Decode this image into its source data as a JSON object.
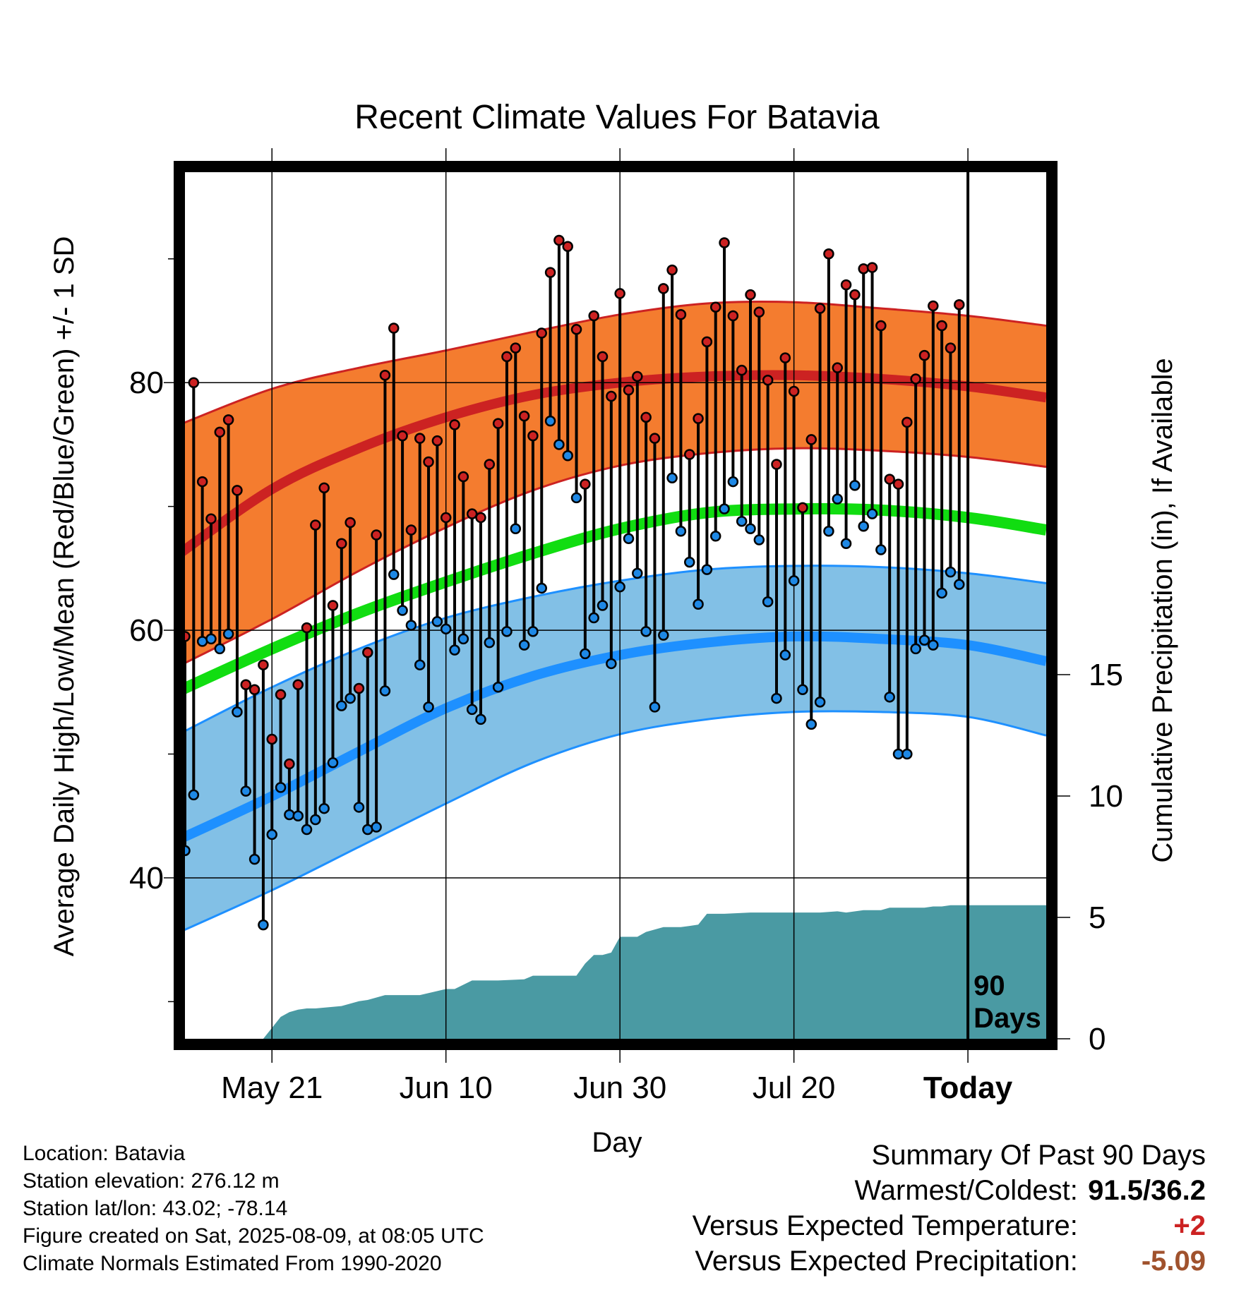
{
  "chart_data": {
    "type": "line",
    "title": "Recent Climate Values For Batavia",
    "xlabel": "Day",
    "ylabel": "Average Daily High/Low/Mean (Red/Blue/Green) +/- 1 SD",
    "y2label": "Cumulative Precipitation (in), If Available",
    "x_range_days_relative_to_today": [
      -90,
      9
    ],
    "ylim": [
      27,
      97
    ],
    "y_ticks": [
      40,
      60,
      80
    ],
    "y2lim": [
      0,
      35.7
    ],
    "y2_ticks": [
      0,
      5,
      10,
      15
    ],
    "x_tick_labels": [
      {
        "label": "May 21",
        "day": -80
      },
      {
        "label": "Jun 10",
        "day": -60
      },
      {
        "label": "Jun 30",
        "day": -40
      },
      {
        "label": "Jul 20",
        "day": -20
      },
      {
        "label": "Today",
        "day": 0
      }
    ],
    "grid": true,
    "today_marker_label": "90\nDays",
    "colors": {
      "high_band": "#f47c2f",
      "high_mean_line": "#cc2222",
      "low_band": "#82c0e6",
      "low_mean_line": "#1e90ff",
      "mean_line": "#11dd11",
      "precip_fill": "#4a9aa3",
      "high_marker": "#cc2222",
      "low_marker": "#1e88e5"
    },
    "normals": {
      "days": [
        -91,
        -80,
        -70,
        -60,
        -50,
        -40,
        -30,
        -20,
        -10,
        0,
        9
      ],
      "high_mean": [
        66,
        71.4,
        74.7,
        77.2,
        79.0,
        80.0,
        80.5,
        80.6,
        80.3,
        79.7,
        78.8
      ],
      "high_sd_upper": [
        76.5,
        79.5,
        81.2,
        82.6,
        84.1,
        85.5,
        86.4,
        86.5,
        86.0,
        85.4,
        84.6
      ],
      "high_sd_lower": [
        57,
        60.9,
        64.8,
        68.3,
        71.3,
        73.3,
        74.3,
        74.7,
        74.5,
        74.0,
        73.2
      ],
      "mean": [
        55,
        58.5,
        61.4,
        63.9,
        66.2,
        68.2,
        69.5,
        69.8,
        69.7,
        69.1,
        68.1
      ],
      "low_mean": [
        43,
        46.6,
        50.2,
        53.7,
        56.3,
        58.0,
        59.0,
        59.5,
        59.3,
        58.8,
        57.5
      ],
      "low_sd_upper": [
        51.5,
        55.4,
        58.5,
        61.0,
        62.7,
        64.0,
        64.9,
        65.2,
        65.1,
        64.6,
        63.8
      ],
      "low_sd_lower": [
        35.5,
        39.0,
        42.5,
        46.0,
        49.3,
        51.6,
        52.8,
        53.4,
        53.4,
        53.0,
        51.5
      ]
    },
    "daily_high": [
      59.5,
      80,
      72,
      69,
      76,
      77,
      71.3,
      55.6,
      55.2,
      57.2,
      51.2,
      54.8,
      49.2,
      55.6,
      60.2,
      68.5,
      71.5,
      62,
      67,
      68.7,
      55.3,
      58.2,
      67.7,
      80.6,
      84.4,
      75.7,
      68.1,
      75.5,
      73.6,
      75.3,
      69.1,
      76.6,
      72.4,
      69.4,
      69.1,
      73.4,
      76.7,
      82.1,
      82.8,
      77.3,
      75.7,
      84,
      88.9,
      91.5,
      91,
      84.3,
      71.8,
      85.4,
      82.1,
      78.9,
      87.2,
      79.4,
      80.5,
      77.2,
      75.5,
      87.6,
      89.1,
      85.5,
      74.2,
      77.1,
      83.3,
      86.1,
      91.3,
      85.4,
      81.0,
      87.1,
      85.7,
      80.2,
      73.4,
      82.0,
      79.3,
      69.9,
      75.4,
      86.0,
      90.4,
      81.2,
      87.9,
      87.1,
      89.2,
      89.3,
      84.6,
      72.2,
      71.8,
      76.8,
      80.3,
      82.2,
      86.2,
      84.6,
      82.8,
      86.3
    ],
    "daily_low": [
      42.2,
      46.7,
      59.1,
      59.3,
      58.5,
      59.7,
      53.4,
      47,
      41.5,
      36.2,
      43.5,
      47.3,
      45.1,
      45.0,
      43.9,
      44.7,
      45.6,
      49.3,
      53.9,
      54.5,
      45.7,
      43.9,
      44.1,
      55.1,
      64.5,
      61.6,
      60.4,
      57.2,
      53.8,
      60.7,
      60.1,
      58.4,
      59.3,
      53.6,
      52.8,
      59.0,
      55.4,
      59.9,
      68.2,
      58.8,
      59.9,
      63.4,
      76.9,
      75,
      74.1,
      70.7,
      58.1,
      61,
      62,
      57.3,
      63.5,
      67.4,
      64.6,
      59.9,
      53.8,
      59.6,
      72.3,
      68,
      65.5,
      62.1,
      64.9,
      67.6,
      69.8,
      72,
      68.8,
      68.2,
      67.3,
      62.3,
      54.5,
      58,
      64,
      55.2,
      52.4,
      54.2,
      68,
      70.6,
      67,
      71.7,
      68.4,
      69.4,
      66.5,
      54.6,
      50,
      50,
      58.5,
      59.2,
      58.8,
      63,
      64.7,
      63.7
    ],
    "cumulative_precip_in": {
      "days": [
        -90,
        -81,
        -79,
        -78,
        -77,
        -76,
        -75,
        -72,
        -70,
        -69,
        -67,
        -65,
        -64,
        -63,
        -60,
        -59,
        -57,
        -54,
        -51,
        -50,
        -47,
        -45,
        -44,
        -43,
        -42,
        -41,
        -40,
        -38,
        -37,
        -35,
        -33,
        -32,
        -31,
        -30,
        -28,
        -25,
        -24,
        -23,
        -22,
        -21,
        -17,
        -15,
        -14,
        -12,
        -11,
        -10,
        -9,
        -8,
        -7,
        -6,
        -5,
        -4,
        -3,
        -2,
        -1,
        0,
        9
      ],
      "values": [
        0,
        0,
        0.9,
        1.1,
        1.2,
        1.25,
        1.25,
        1.35,
        1.55,
        1.6,
        1.8,
        1.8,
        1.8,
        1.8,
        2.05,
        2.05,
        2.4,
        2.4,
        2.45,
        2.6,
        2.6,
        2.6,
        3.1,
        3.45,
        3.45,
        3.55,
        4.2,
        4.2,
        4.4,
        4.6,
        4.6,
        4.65,
        4.7,
        5.15,
        5.15,
        5.2,
        5.2,
        5.2,
        5.2,
        5.2,
        5.2,
        5.25,
        5.2,
        5.3,
        5.3,
        5.3,
        5.4,
        5.4,
        5.4,
        5.4,
        5.4,
        5.45,
        5.45,
        5.5,
        5.5,
        5.5,
        5.5
      ]
    }
  },
  "info": {
    "location": "Location: Batavia",
    "elevation": "Station elevation: 276.12 m",
    "latlon": "Station lat/lon: 43.02; -78.14",
    "created": "Figure created on Sat, 2025-08-09, at 08:05 UTC",
    "normals": "Climate Normals Estimated From 1990-2020"
  },
  "summary": {
    "title": "Summary Of Past 90 Days",
    "warmest_label": "Warmest/Coldest:",
    "warmest_value": "91.5/36.2",
    "temp_label": "Versus Expected Temperature:",
    "temp_value": "+2",
    "temp_color": "#cc2222",
    "precip_label": "Versus Expected Precipitation:",
    "precip_value": "-5.09",
    "precip_color": "#a0522d"
  }
}
